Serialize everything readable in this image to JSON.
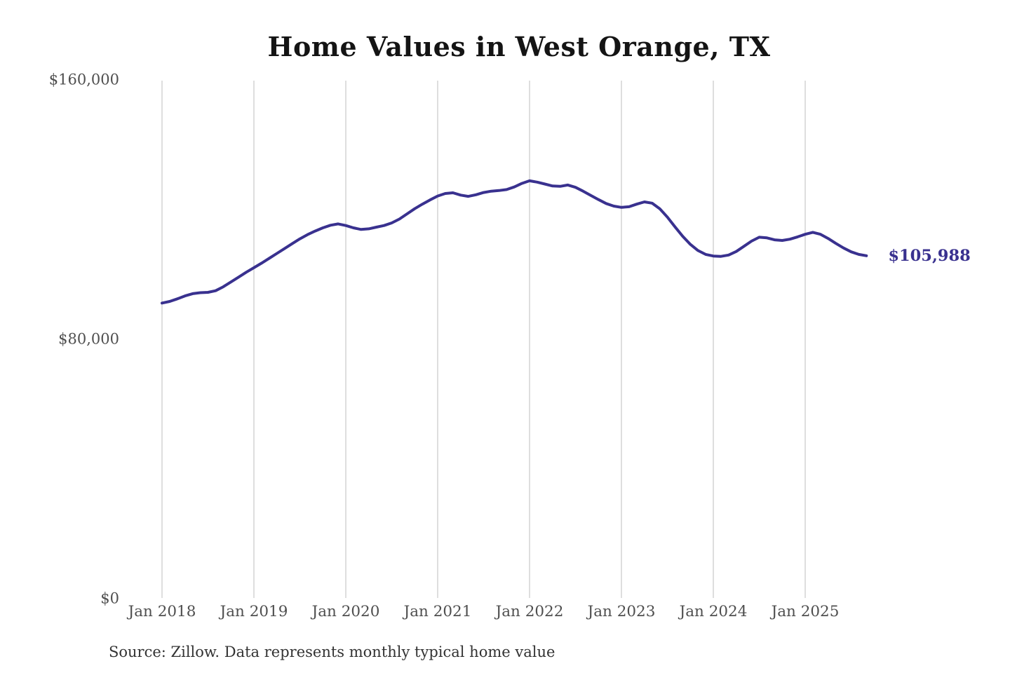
{
  "page": {
    "background": "#ffffff"
  },
  "chart": {
    "title": "Home Values in West Orange, TX",
    "source_note": "Source: Zillow. Data represents monthly typical home value",
    "end_value_label": "$105,988",
    "colors": {
      "line": "#39318f",
      "end_label": "#39318f",
      "grid": "#cccccc",
      "axis_text": "#4f4f4f",
      "title_text": "#141414",
      "source_text": "#333333",
      "background": "#ffffff"
    }
  },
  "chart_data": {
    "type": "line",
    "title": "Home Values in West Orange, TX",
    "xlabel": "",
    "ylabel": "",
    "legend": "none",
    "grid": "vertical-only",
    "ylim": [
      0,
      160000
    ],
    "y_ticks": [
      {
        "label": "$0",
        "value": 0
      },
      {
        "label": "$80,000",
        "value": 80000
      },
      {
        "label": "$160,000",
        "value": 160000
      }
    ],
    "x_tick_labels": [
      "Jan 2018",
      "Jan 2019",
      "Jan 2020",
      "Jan 2021",
      "Jan 2022",
      "Jan 2023",
      "Jan 2024",
      "Jan 2025"
    ],
    "end_label": "$105,988",
    "source": "Source: Zillow. Data represents monthly typical home value",
    "series": [
      {
        "name": "Monthly typical home value",
        "start_month": "2018-01",
        "end_month": "2025-09",
        "frequency": "monthly",
        "values": [
          91400,
          91900,
          92700,
          93600,
          94300,
          94600,
          94700,
          95200,
          96400,
          97900,
          99400,
          100900,
          102300,
          103700,
          105200,
          106700,
          108200,
          109700,
          111200,
          112500,
          113600,
          114600,
          115400,
          115800,
          115300,
          114600,
          114100,
          114300,
          114800,
          115300,
          116100,
          117300,
          118900,
          120500,
          121900,
          123200,
          124400,
          125200,
          125400,
          124700,
          124300,
          124800,
          125500,
          125900,
          126100,
          126400,
          127200,
          128300,
          129100,
          128700,
          128100,
          127500,
          127400,
          127800,
          127100,
          125900,
          124600,
          123300,
          122100,
          121300,
          120900,
          121100,
          121900,
          122600,
          122200,
          120500,
          117900,
          114900,
          112000,
          109500,
          107600,
          106400,
          105900,
          105800,
          106200,
          107300,
          108900,
          110500,
          111700,
          111500,
          110900,
          110700,
          111100,
          111800,
          112600,
          113200,
          112600,
          111300,
          109800,
          108400,
          107200,
          106400,
          105988
        ]
      }
    ]
  }
}
